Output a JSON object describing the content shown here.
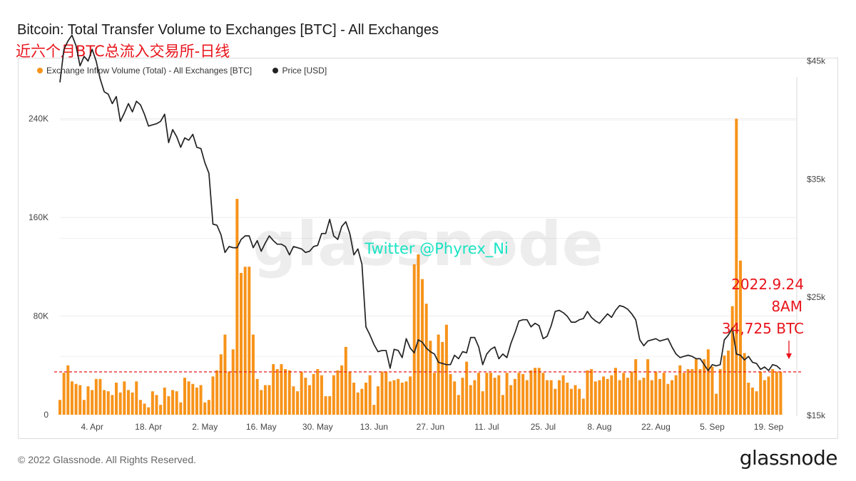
{
  "header": {
    "title": "Bitcoin: Total Transfer Volume to Exchanges [BTC] - All Exchanges",
    "subtitle": "近六个月BTC总流入交易所-日线"
  },
  "footer": {
    "copyright": "© 2022 Glassnode. All Rights Reserved.",
    "logo": "glassnode"
  },
  "colors": {
    "bar": "#f7931a",
    "price_line": "#222222",
    "reference_line": "#e8141b",
    "annotation": "#e8141b",
    "twitter": "#19e3c3"
  },
  "chart_data": {
    "type": "bar",
    "series": [
      {
        "name": "Exchange Inflow Volume (Total) - All Exchanges [BTC]",
        "type": "bar",
        "axis": "left"
      },
      {
        "name": "Price [USD]",
        "type": "line",
        "axis": "right"
      }
    ],
    "x_start": "2022-03-27",
    "x_end": "2022-09-26",
    "x_ticks": [
      {
        "date": "2022-04-04",
        "label": "4. Apr"
      },
      {
        "date": "2022-04-18",
        "label": "18. Apr"
      },
      {
        "date": "2022-05-02",
        "label": "2. May"
      },
      {
        "date": "2022-05-16",
        "label": "16. May"
      },
      {
        "date": "2022-05-30",
        "label": "30. May"
      },
      {
        "date": "2022-06-13",
        "label": "13. Jun"
      },
      {
        "date": "2022-06-27",
        "label": "27. Jun"
      },
      {
        "date": "2022-07-11",
        "label": "11. Jul"
      },
      {
        "date": "2022-07-25",
        "label": "25. Jul"
      },
      {
        "date": "2022-08-08",
        "label": "8. Aug"
      },
      {
        "date": "2022-08-22",
        "label": "22. Aug"
      },
      {
        "date": "2022-09-05",
        "label": "5. Sep"
      },
      {
        "date": "2022-09-19",
        "label": "19. Sep"
      }
    ],
    "y_left": {
      "min": 0,
      "max": 260000,
      "ticks": [
        {
          "value": 0,
          "label": "0"
        },
        {
          "value": 80000,
          "label": "80K"
        },
        {
          "value": 160000,
          "label": "160K"
        },
        {
          "value": 240000,
          "label": "240K"
        }
      ]
    },
    "y_right": {
      "min": 15000,
      "max": 48000,
      "scale": "linear",
      "ticks": [
        {
          "value": 15000,
          "label": "$15k"
        },
        {
          "value": 25000,
          "label": "$25k"
        },
        {
          "value": 35000,
          "label": "$35k"
        },
        {
          "value": 45000,
          "label": "$45k"
        }
      ]
    },
    "inflow_btc": [
      12000,
      34000,
      40000,
      27000,
      25000,
      24000,
      12000,
      23000,
      20000,
      29000,
      29000,
      20000,
      19000,
      16000,
      26000,
      18000,
      27000,
      20000,
      18000,
      27000,
      12000,
      9000,
      6000,
      19000,
      16000,
      8000,
      22000,
      15000,
      20000,
      19000,
      10000,
      30000,
      27000,
      25000,
      22000,
      24000,
      10000,
      12000,
      31000,
      36000,
      49000,
      65000,
      35000,
      53000,
      175000,
      115000,
      120000,
      120000,
      65000,
      29000,
      20000,
      24000,
      24000,
      41000,
      37000,
      41000,
      37000,
      36000,
      23000,
      19000,
      35000,
      30000,
      24000,
      33000,
      37000,
      32000,
      15000,
      15000,
      32000,
      36000,
      40000,
      55000,
      35000,
      26000,
      18000,
      21000,
      26000,
      32000,
      8000,
      23000,
      35000,
      35000,
      27000,
      28000,
      29000,
      26000,
      27000,
      31000,
      122000,
      130000,
      110000,
      90000,
      60000,
      34000,
      65000,
      59000,
      73000,
      33000,
      27000,
      16000,
      30000,
      43000,
      24000,
      28000,
      34000,
      19000,
      34000,
      34000,
      30000,
      32000,
      16000,
      34000,
      24000,
      29000,
      34000,
      33000,
      28000,
      36000,
      38000,
      38000,
      34000,
      28000,
      28000,
      21000,
      28000,
      32000,
      26000,
      21000,
      24000,
      21000,
      13000,
      36000,
      37000,
      27000,
      28000,
      31000,
      29000,
      32000,
      38000,
      28000,
      34000,
      30000,
      35000,
      45000,
      28000,
      30000,
      45000,
      28000,
      35000,
      29000,
      34000,
      25000,
      28000,
      32000,
      40000,
      34000,
      37000,
      37000,
      45000,
      37000,
      45000,
      53000,
      39000,
      17000,
      37000,
      48000,
      52000,
      88000,
      240000,
      125000,
      50000,
      26000,
      22000,
      19000,
      35000,
      28000,
      31000,
      37000,
      35000,
      34725
    ],
    "price_usd": [
      43200,
      46000,
      46700,
      47200,
      46300,
      44600,
      45400,
      45000,
      46000,
      45000,
      43500,
      42400,
      42200,
      41400,
      42000,
      39900,
      40600,
      41400,
      40700,
      41600,
      41300,
      40500,
      39500,
      39600,
      39700,
      39900,
      40500,
      38100,
      39200,
      38600,
      37700,
      38500,
      38300,
      38800,
      37700,
      37600,
      36400,
      35500,
      31200,
      31100,
      30300,
      28800,
      29300,
      29200,
      29200,
      29900,
      30200,
      30200,
      29200,
      29800,
      28900,
      29600,
      30200,
      29800,
      29500,
      29500,
      29300,
      28600,
      29300,
      29200,
      29100,
      28800,
      28900,
      29300,
      29400,
      30400,
      30400,
      31600,
      30200,
      29900,
      31000,
      31400,
      30400,
      28600,
      29100,
      27800,
      22500,
      21800,
      21000,
      20400,
      20500,
      20500,
      19000,
      20600,
      20500,
      19900,
      21500,
      20700,
      20300,
      21400,
      21200,
      20700,
      20400,
      20200,
      19500,
      19400,
      19300,
      19300,
      20100,
      19800,
      20400,
      20300,
      21600,
      21600,
      20800,
      19300,
      20200,
      20600,
      20800,
      19800,
      20200,
      19900,
      21100,
      22000,
      23000,
      23100,
      23100,
      22500,
      22800,
      22600,
      21500,
      21700,
      22600,
      23800,
      23900,
      23700,
      23400,
      22900,
      22900,
      23100,
      23200,
      23800,
      23300,
      23000,
      22800,
      23200,
      23600,
      23300,
      23900,
      24300,
      24200,
      24000,
      23600,
      23100,
      21400,
      20900,
      21300,
      21400,
      21500,
      21300,
      21400,
      21500,
      20800,
      20200,
      19900,
      20000,
      20100,
      20000,
      19800,
      19800,
      19300,
      18800,
      19300,
      19200,
      19300,
      21400,
      21800,
      22400,
      20200,
      20100,
      19700,
      20000,
      19500,
      19400,
      18900,
      19100,
      18800,
      19300,
      19200,
      18900
    ],
    "reference_line_btc": 34725,
    "annotation": {
      "lines": [
        "2022.9.24",
        "8AM",
        "34,725 BTC"
      ]
    },
    "watermark": "glassnode",
    "overlay_text": "Twitter @Phyrex_Ni",
    "grid": "horizontal",
    "legend_position": "top-left"
  }
}
